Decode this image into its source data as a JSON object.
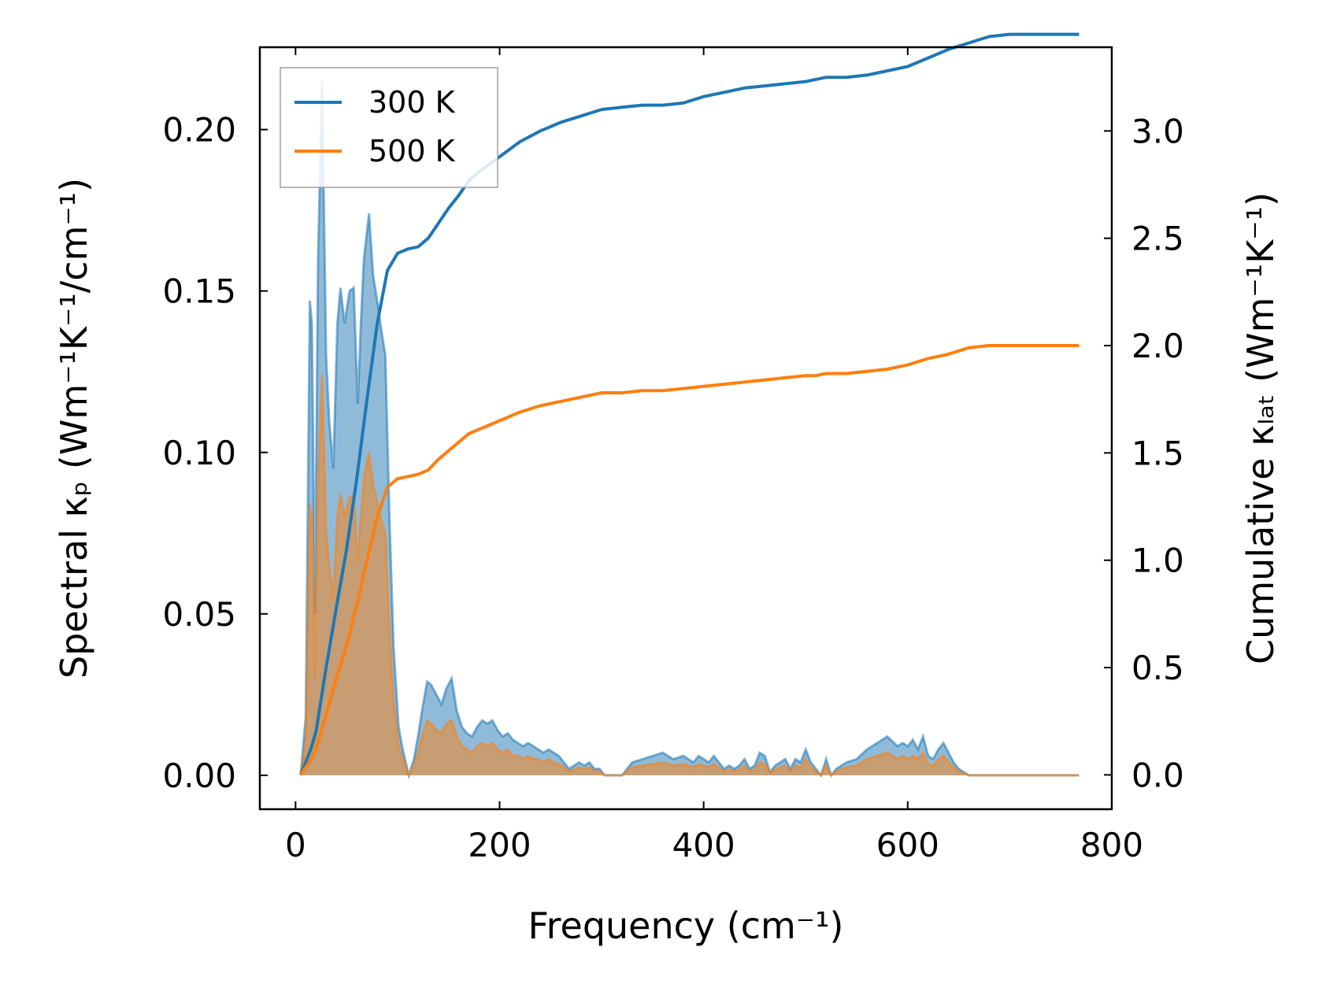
{
  "chart_data": {
    "type": "line",
    "title": "",
    "xlabel": "Frequency (cm⁻¹)",
    "ylabel_left": "Spectral κₚ (Wm⁻¹K⁻¹/cm⁻¹)",
    "ylabel_right": "Cumulative κₗₐₜ (Wm⁻¹K⁻¹)",
    "xlim": [
      -35,
      800
    ],
    "ylim_left": [
      -0.0105,
      0.2255
    ],
    "ylim_right": [
      -0.16,
      3.39
    ],
    "x_ticks": [
      0,
      200,
      400,
      600,
      800
    ],
    "x_tick_labels": [
      "0",
      "200",
      "400",
      "600",
      "800"
    ],
    "y_left_ticks": [
      0.0,
      0.05,
      0.1,
      0.15,
      0.2
    ],
    "y_left_tick_labels": [
      "0.00",
      "0.05",
      "0.10",
      "0.15",
      "0.20"
    ],
    "y_right_ticks": [
      0.0,
      0.5,
      1.0,
      1.5,
      2.0,
      2.5,
      3.0
    ],
    "y_right_tick_labels": [
      "0.0",
      "0.5",
      "1.0",
      "1.5",
      "2.0",
      "2.5",
      "3.0"
    ],
    "legend": {
      "placement": "top-left",
      "entries": [
        "300 K",
        "500 K"
      ]
    },
    "colors": {
      "300 K": "#1f77b4",
      "500 K": "#ff7f0e",
      "fill_300K": "#1f77b4",
      "fill_500K": "#ff7f0e"
    },
    "spectral_series": [
      {
        "name": "300 K",
        "axis": "left",
        "x": [
          5,
          10,
          14,
          16,
          19,
          22,
          26,
          30,
          33,
          37,
          41,
          44,
          48,
          53,
          57,
          61,
          64,
          67,
          72,
          76,
          81,
          84,
          88,
          92,
          96,
          101,
          105,
          111,
          116,
          120,
          124,
          129,
          133,
          138,
          143,
          148,
          153,
          158,
          163,
          168,
          173,
          178,
          183,
          188,
          193,
          198,
          203,
          208,
          213,
          218,
          223,
          228,
          233,
          238,
          243,
          248,
          253,
          258,
          263,
          268,
          273,
          278,
          283,
          288,
          293,
          298,
          303,
          310,
          320,
          330,
          340,
          350,
          360,
          370,
          380,
          385,
          390,
          395,
          400,
          405,
          410,
          415,
          420,
          425,
          430,
          435,
          440,
          445,
          450,
          455,
          460,
          465,
          470,
          475,
          480,
          485,
          490,
          495,
          500,
          505,
          510,
          515,
          520,
          525,
          530,
          535,
          540,
          550,
          560,
          570,
          580,
          590,
          595,
          600,
          605,
          610,
          615,
          620,
          625,
          630,
          635,
          640,
          645,
          650,
          655,
          660,
          665,
          670,
          675,
          680,
          690,
          700,
          720,
          740,
          768
        ],
        "y": [
          0.0,
          0.018,
          0.147,
          0.14,
          0.05,
          0.16,
          0.215,
          0.13,
          0.11,
          0.095,
          0.14,
          0.151,
          0.14,
          0.15,
          0.151,
          0.115,
          0.14,
          0.16,
          0.174,
          0.155,
          0.145,
          0.138,
          0.13,
          0.08,
          0.04,
          0.015,
          0.008,
          0.0,
          0.005,
          0.012,
          0.02,
          0.029,
          0.028,
          0.025,
          0.022,
          0.027,
          0.03,
          0.02,
          0.015,
          0.013,
          0.012,
          0.015,
          0.017,
          0.016,
          0.017,
          0.014,
          0.012,
          0.013,
          0.011,
          0.01,
          0.009,
          0.01,
          0.009,
          0.008,
          0.007,
          0.008,
          0.007,
          0.006,
          0.004,
          0.002,
          0.003,
          0.004,
          0.003,
          0.004,
          0.002,
          0.002,
          0.0,
          0.0,
          0.0,
          0.004,
          0.005,
          0.006,
          0.007,
          0.005,
          0.006,
          0.005,
          0.004,
          0.006,
          0.005,
          0.004,
          0.006,
          0.004,
          0.002,
          0.003,
          0.002,
          0.003,
          0.005,
          0.002,
          0.003,
          0.007,
          0.006,
          0.001,
          0.003,
          0.004,
          0.005,
          0.002,
          0.005,
          0.004,
          0.008,
          0.004,
          0.002,
          0.0,
          0.005,
          0.0,
          0.002,
          0.003,
          0.004,
          0.005,
          0.008,
          0.01,
          0.012,
          0.009,
          0.01,
          0.009,
          0.011,
          0.008,
          0.012,
          0.006,
          0.005,
          0.008,
          0.01,
          0.007,
          0.004,
          0.002,
          0.001,
          0.0,
          0.0,
          0.0,
          0.0,
          0.0,
          0.0,
          0.0,
          0.0,
          0.0,
          0.0
        ],
        "unit": "Wm-1K-1/cm-1"
      },
      {
        "name": "500 K",
        "axis": "left",
        "x": [
          5,
          10,
          14,
          16,
          19,
          22,
          26,
          30,
          33,
          37,
          41,
          44,
          48,
          53,
          57,
          61,
          64,
          67,
          72,
          76,
          81,
          84,
          88,
          92,
          96,
          101,
          105,
          111,
          116,
          120,
          124,
          129,
          133,
          138,
          143,
          148,
          153,
          158,
          163,
          168,
          173,
          178,
          183,
          188,
          193,
          198,
          203,
          208,
          213,
          218,
          223,
          228,
          233,
          238,
          243,
          248,
          253,
          258,
          263,
          268,
          273,
          278,
          283,
          288,
          293,
          298,
          303,
          310,
          320,
          330,
          340,
          350,
          360,
          370,
          380,
          385,
          390,
          395,
          400,
          405,
          410,
          415,
          420,
          425,
          430,
          435,
          440,
          445,
          450,
          455,
          460,
          465,
          470,
          475,
          480,
          485,
          490,
          495,
          500,
          505,
          510,
          515,
          520,
          525,
          530,
          535,
          540,
          550,
          560,
          570,
          580,
          590,
          595,
          600,
          605,
          610,
          615,
          620,
          625,
          630,
          635,
          640,
          645,
          650,
          655,
          660,
          665,
          670,
          675,
          680,
          690,
          700,
          720,
          740,
          768
        ],
        "y": [
          0.0,
          0.01,
          0.084,
          0.08,
          0.03,
          0.09,
          0.124,
          0.075,
          0.065,
          0.055,
          0.08,
          0.087,
          0.08,
          0.086,
          0.087,
          0.066,
          0.08,
          0.092,
          0.1,
          0.09,
          0.083,
          0.079,
          0.075,
          0.046,
          0.023,
          0.009,
          0.005,
          0.0,
          0.003,
          0.007,
          0.012,
          0.017,
          0.016,
          0.014,
          0.013,
          0.016,
          0.017,
          0.012,
          0.009,
          0.008,
          0.007,
          0.009,
          0.01,
          0.009,
          0.01,
          0.008,
          0.007,
          0.008,
          0.006,
          0.006,
          0.005,
          0.006,
          0.005,
          0.005,
          0.004,
          0.005,
          0.004,
          0.0035,
          0.0025,
          0.0012,
          0.0018,
          0.0025,
          0.0018,
          0.0025,
          0.0012,
          0.0012,
          0.0,
          0.0,
          0.0,
          0.0025,
          0.003,
          0.0035,
          0.004,
          0.003,
          0.0035,
          0.003,
          0.0025,
          0.0035,
          0.003,
          0.0025,
          0.0035,
          0.0025,
          0.0012,
          0.0018,
          0.0012,
          0.0018,
          0.003,
          0.0012,
          0.0018,
          0.004,
          0.0035,
          0.0006,
          0.0018,
          0.0025,
          0.003,
          0.0012,
          0.003,
          0.0025,
          0.005,
          0.0025,
          0.0012,
          0.0,
          0.003,
          0.0,
          0.0012,
          0.0018,
          0.0025,
          0.003,
          0.005,
          0.006,
          0.007,
          0.005,
          0.006,
          0.005,
          0.006,
          0.005,
          0.007,
          0.0035,
          0.003,
          0.005,
          0.006,
          0.004,
          0.0025,
          0.0012,
          0.0006,
          0.0,
          0.0,
          0.0,
          0.0,
          0.0,
          0.0,
          0.0,
          0.0,
          0.0,
          0.0
        ],
        "unit": "Wm-1K-1/cm-1"
      }
    ],
    "cumulative_series": [
      {
        "name": "300 K",
        "axis": "right",
        "x": [
          5,
          15,
          20,
          30,
          40,
          50,
          60,
          70,
          80,
          90,
          100,
          110,
          120,
          130,
          140,
          150,
          160,
          170,
          180,
          200,
          220,
          240,
          260,
          280,
          300,
          320,
          340,
          360,
          380,
          400,
          420,
          440,
          460,
          480,
          500,
          510,
          520,
          540,
          560,
          580,
          600,
          620,
          640,
          660,
          680,
          700,
          720,
          768
        ],
        "y": [
          0.0,
          0.12,
          0.2,
          0.5,
          0.78,
          1.05,
          1.38,
          1.75,
          2.1,
          2.35,
          2.43,
          2.45,
          2.46,
          2.5,
          2.57,
          2.64,
          2.7,
          2.77,
          2.81,
          2.88,
          2.95,
          3.0,
          3.04,
          3.07,
          3.1,
          3.11,
          3.12,
          3.12,
          3.13,
          3.16,
          3.18,
          3.2,
          3.21,
          3.22,
          3.23,
          3.24,
          3.25,
          3.25,
          3.26,
          3.28,
          3.3,
          3.34,
          3.38,
          3.41,
          3.44,
          3.45,
          3.45,
          3.45
        ],
        "unit": "Wm-1K-1"
      },
      {
        "name": "500 K",
        "axis": "right",
        "x": [
          5,
          15,
          20,
          30,
          40,
          50,
          60,
          70,
          80,
          90,
          100,
          110,
          120,
          130,
          140,
          150,
          160,
          170,
          180,
          200,
          220,
          240,
          260,
          280,
          300,
          320,
          340,
          360,
          380,
          400,
          420,
          440,
          460,
          480,
          500,
          510,
          520,
          540,
          560,
          580,
          600,
          620,
          640,
          660,
          680,
          700,
          720,
          768
        ],
        "y": [
          0.0,
          0.07,
          0.12,
          0.28,
          0.45,
          0.6,
          0.79,
          1.0,
          1.2,
          1.34,
          1.38,
          1.39,
          1.4,
          1.42,
          1.47,
          1.51,
          1.55,
          1.59,
          1.61,
          1.65,
          1.69,
          1.72,
          1.74,
          1.76,
          1.78,
          1.78,
          1.79,
          1.79,
          1.8,
          1.81,
          1.82,
          1.83,
          1.84,
          1.85,
          1.86,
          1.86,
          1.87,
          1.87,
          1.88,
          1.89,
          1.91,
          1.94,
          1.96,
          1.99,
          2.0,
          2.0,
          2.0,
          2.0
        ],
        "unit": "Wm-1K-1"
      }
    ]
  }
}
